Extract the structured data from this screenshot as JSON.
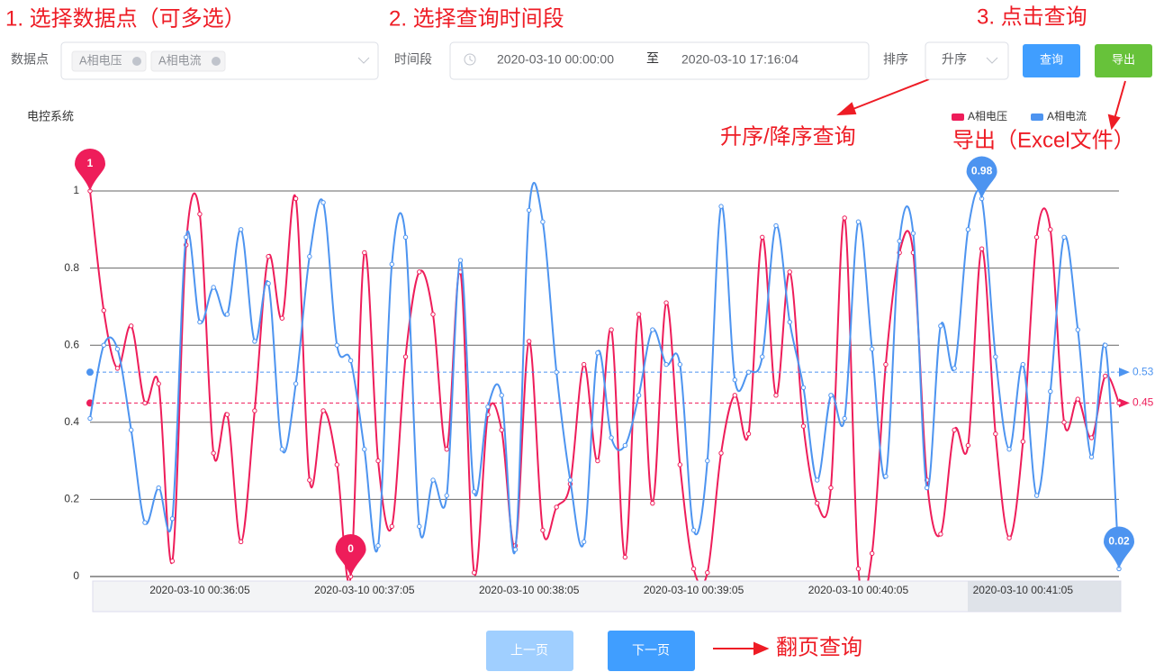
{
  "annotations": [
    "1. 选择数据点（可多选）",
    "2. 选择查询时间段",
    "3. 点击查询",
    "升序/降序查询",
    "导出（Excel文件）",
    "翻页查询"
  ],
  "form": {
    "data_point_label": "数据点",
    "tags": [
      "A相电压",
      "A相电流"
    ],
    "time_label": "时间段",
    "start": "2020-03-10 00:00:00",
    "to": "至",
    "end": "2020-03-10 17:16:04",
    "sort_label": "排序",
    "sort_value": "升序",
    "query": "查询",
    "export": "导出"
  },
  "chart_data": {
    "type": "line",
    "title": "电控系统",
    "smooth": true,
    "legend": "top-right",
    "categories": [
      null,
      null,
      null,
      null,
      null,
      null,
      null,
      null,
      "2020-03-10 00:36:05",
      null,
      null,
      null,
      null,
      null,
      null,
      null,
      null,
      null,
      null,
      null,
      "2020-03-10 00:37:05",
      null,
      null,
      null,
      null,
      null,
      null,
      null,
      null,
      null,
      null,
      null,
      "2020-03-10 00:38:05",
      null,
      null,
      null,
      null,
      null,
      null,
      null,
      null,
      null,
      null,
      null,
      "2020-03-10 00:39:05",
      null,
      null,
      null,
      null,
      null,
      null,
      null,
      null,
      null,
      null,
      null,
      "2020-03-10 00:40:05",
      null,
      null,
      null,
      null,
      null,
      null,
      null,
      null,
      null,
      null,
      null,
      "2020-03-10 00:41:05",
      null,
      null,
      null,
      null,
      null,
      null,
      null
    ],
    "ylim": [
      0,
      1
    ],
    "yticks": [
      0,
      0.2,
      0.4,
      0.6,
      0.8,
      1
    ],
    "grid": true,
    "series": [
      {
        "name": "A相电压",
        "color": "#ee1d5a",
        "max": 1,
        "min": 0,
        "average": 0.45,
        "values": [
          1.0,
          0.69,
          0.54,
          0.65,
          0.45,
          0.5,
          0.04,
          0.86,
          0.94,
          0.32,
          0.42,
          0.09,
          0.43,
          0.83,
          0.67,
          0.98,
          0.25,
          0.43,
          0.29,
          0,
          0.84,
          0.3,
          0.13,
          0.57,
          0.79,
          0.68,
          0.33,
          0.79,
          0.01,
          0.42,
          0.38,
          0.08,
          0.61,
          0.12,
          0.18,
          0.24,
          0.55,
          0.3,
          0.64,
          0.05,
          0.68,
          0.19,
          0.71,
          0.29,
          0.02,
          0.01,
          0.32,
          0.47,
          0.37,
          0.88,
          0.47,
          0.79,
          0.39,
          0.19,
          0.23,
          0.93,
          0.02,
          0.06,
          0.55,
          0.84,
          0.84,
          0.25,
          0.11,
          0.38,
          0.34,
          0.85,
          0.37,
          0.1,
          0.35,
          0.88,
          0.9,
          0.4,
          0.46,
          0.36,
          0.52,
          0.45
        ]
      },
      {
        "name": "A相电流",
        "color": "#4d94f0",
        "max": 0.98,
        "min": 0.02,
        "average": 0.53,
        "values": [
          0.41,
          0.6,
          0.59,
          0.38,
          0.14,
          0.23,
          0.15,
          0.88,
          0.66,
          0.75,
          0.68,
          0.9,
          0.61,
          0.76,
          0.33,
          0.5,
          0.83,
          0.97,
          0.6,
          0.56,
          0.33,
          0.08,
          0.81,
          0.88,
          0.13,
          0.25,
          0.21,
          0.82,
          0.22,
          0.44,
          0.47,
          0.07,
          0.95,
          0.92,
          0.53,
          0.25,
          0.09,
          0.58,
          0.36,
          0.34,
          0.47,
          0.64,
          0.55,
          0.55,
          0.12,
          0.3,
          0.96,
          0.51,
          0.53,
          0.57,
          0.91,
          0.66,
          0.49,
          0.25,
          0.47,
          0.41,
          0.92,
          0.59,
          0.26,
          0.87,
          0.89,
          0.23,
          0.65,
          0.54,
          0.9,
          0.98,
          0.57,
          0.33,
          0.55,
          0.21,
          0.48,
          0.88,
          0.64,
          0.31,
          0.6,
          0.02
        ]
      }
    ]
  },
  "pagination": {
    "prev": "上一页",
    "next": "下一页"
  }
}
